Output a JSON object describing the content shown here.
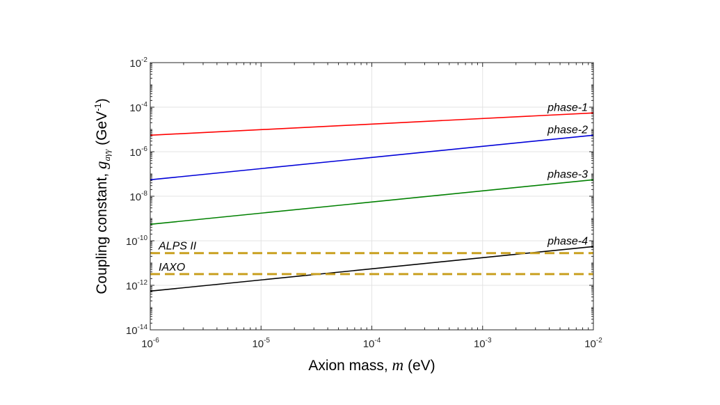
{
  "chart_data": {
    "type": "line",
    "title": "",
    "xscale": "log",
    "yscale": "log",
    "xlim": [
      1e-06,
      0.01
    ],
    "ylim": [
      1e-14,
      0.01
    ],
    "grid": true,
    "xlabel": {
      "prefix": "Axion mass, ",
      "variable": "m",
      "suffix": " (eV)"
    },
    "ylabel": {
      "prefix": "Coupling constant, ",
      "variable": "g",
      "subscript": "aγγ",
      "unit_open": " (GeV",
      "unit_exp": "-1",
      "unit_close": ")"
    },
    "x_ticks": [
      {
        "base": "10",
        "exp": "-6",
        "value": 1e-06
      },
      {
        "base": "10",
        "exp": "-5",
        "value": 1e-05
      },
      {
        "base": "10",
        "exp": "-4",
        "value": 0.0001
      },
      {
        "base": "10",
        "exp": "-3",
        "value": 0.001
      },
      {
        "base": "10",
        "exp": "-2",
        "value": 0.01
      }
    ],
    "y_ticks": [
      {
        "base": "10",
        "exp": "-14",
        "value": 1e-14
      },
      {
        "base": "10",
        "exp": "-12",
        "value": 1e-12
      },
      {
        "base": "10",
        "exp": "-10",
        "value": 1e-10
      },
      {
        "base": "10",
        "exp": "-8",
        "value": 1e-08
      },
      {
        "base": "10",
        "exp": "-6",
        "value": 1e-06
      },
      {
        "base": "10",
        "exp": "-4",
        "value": 0.0001
      },
      {
        "base": "10",
        "exp": "-2",
        "value": 0.01
      }
    ],
    "series": [
      {
        "name": "phase-1",
        "style": "solid",
        "color": "#ff0000",
        "x": [
          1e-06,
          0.01
        ],
        "y": [
          5.5e-06,
          5.5e-05
        ]
      },
      {
        "name": "phase-2",
        "style": "solid",
        "color": "#0000d8",
        "x": [
          1e-06,
          0.01
        ],
        "y": [
          5.5e-08,
          5.5e-06
        ]
      },
      {
        "name": "phase-3",
        "style": "solid",
        "color": "#008000",
        "x": [
          1e-06,
          0.01
        ],
        "y": [
          5.5e-10,
          5.5e-08
        ]
      },
      {
        "name": "phase-4",
        "style": "solid",
        "color": "#000000",
        "x": [
          1e-06,
          0.01
        ],
        "y": [
          5.5e-13,
          5.5e-11
        ]
      },
      {
        "name": "ALPS II",
        "style": "dashed",
        "color": "#c9a020",
        "x": [
          1e-06,
          0.01
        ],
        "y": [
          2.8e-11,
          2.8e-11
        ]
      },
      {
        "name": "IAXO",
        "style": "dashed",
        "color": "#c9a020",
        "x": [
          1e-06,
          0.01
        ],
        "y": [
          3.2e-12,
          3.2e-12
        ]
      }
    ]
  }
}
